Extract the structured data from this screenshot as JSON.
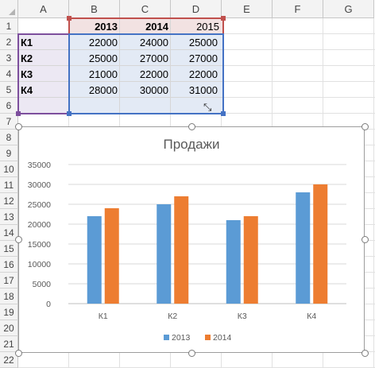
{
  "columns": [
    "A",
    "B",
    "C",
    "D",
    "E",
    "F",
    "G"
  ],
  "rows": [
    "1",
    "2",
    "3",
    "4",
    "5",
    "6",
    "7",
    "8",
    "9",
    "10",
    "11",
    "12",
    "13",
    "14",
    "15",
    "16",
    "17",
    "18",
    "19",
    "20",
    "21",
    "22"
  ],
  "table": {
    "headers": [
      "2013",
      "2014",
      "2015"
    ],
    "data": [
      {
        "label": "К1",
        "values": [
          "22000",
          "24000",
          "25000"
        ]
      },
      {
        "label": "К2",
        "values": [
          "25000",
          "27000",
          "27000"
        ]
      },
      {
        "label": "К3",
        "values": [
          "21000",
          "22000",
          "22000"
        ]
      },
      {
        "label": "К4",
        "values": [
          "28000",
          "30000",
          "31000"
        ]
      }
    ]
  },
  "colors": {
    "series1": "#5B9BD5",
    "series2": "#ED7D31",
    "header_fill": "#F2E2E2",
    "label_fill": "#ECE8F3",
    "data_fill": "#E3EAF5",
    "sel_red": "#C0504D",
    "sel_purple": "#7D4F9D",
    "sel_blue": "#4472C4"
  },
  "icons": {
    "resize": "resize-diagonal-icon"
  },
  "chart_data": {
    "type": "bar",
    "title": "Продажи",
    "categories": [
      "К1",
      "К2",
      "К3",
      "К4"
    ],
    "series": [
      {
        "name": "2013",
        "values": [
          22000,
          25000,
          21000,
          28000
        ]
      },
      {
        "name": "2014",
        "values": [
          24000,
          27000,
          22000,
          30000
        ]
      }
    ],
    "ylim": [
      0,
      35000
    ],
    "yticks": [
      "0",
      "5000",
      "10000",
      "15000",
      "20000",
      "25000",
      "30000",
      "35000"
    ],
    "grid": true,
    "legend": "bottom"
  }
}
